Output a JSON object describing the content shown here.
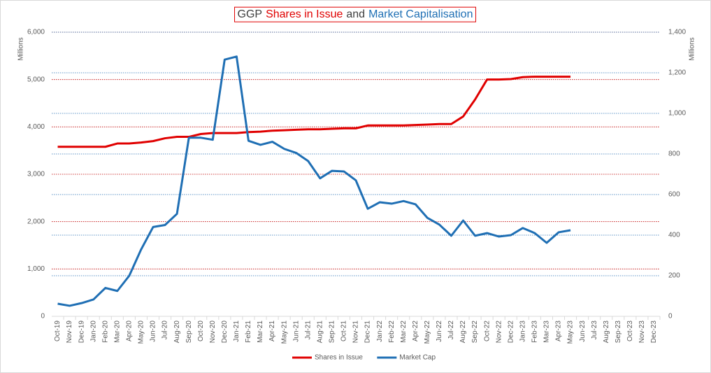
{
  "chart_data": {
    "type": "line",
    "title_parts": [
      {
        "text": "GGP",
        "color": "#404040"
      },
      {
        "text": "Shares in Issue",
        "color": "#e00000"
      },
      {
        "text": "and",
        "color": "#404040"
      },
      {
        "text": "Market Capitalisation",
        "color": "#1f6fb4"
      }
    ],
    "y_label": "Millions",
    "y2_label": "Millions",
    "categories": [
      "Oct-19",
      "Nov-19",
      "Dec-19",
      "Jan-20",
      "Feb-20",
      "Mar-20",
      "Apr-20",
      "May-20",
      "Jun-20",
      "Jul-20",
      "Aug-20",
      "Sep-20",
      "Oct-20",
      "Nov-20",
      "Dec-20",
      "Jan-21",
      "Feb-21",
      "Mar-21",
      "Apr-21",
      "May-21",
      "Jun-21",
      "Jul-21",
      "Aug-21",
      "Sep-21",
      "Oct-21",
      "Nov-21",
      "Dec-21",
      "Jan-22",
      "Feb-22",
      "Mar-22",
      "Apr-22",
      "May-22",
      "Jun-22",
      "Jul-22",
      "Aug-22",
      "Sep-22",
      "Oct-22",
      "Nov-22",
      "Dec-22",
      "Jan-23",
      "Feb-23",
      "Mar-23",
      "Apr-23",
      "May-23",
      "Jun-23",
      "Jul-23",
      "Aug-23",
      "Sep-23",
      "Oct-23",
      "Nov-23",
      "Dec-23"
    ],
    "series": [
      {
        "name": "Shares in Issue",
        "color": "#e00000",
        "axis": "y",
        "values": [
          3580,
          3580,
          3580,
          3580,
          3580,
          3650,
          3650,
          3670,
          3700,
          3760,
          3790,
          3790,
          3850,
          3870,
          3870,
          3870,
          3890,
          3900,
          3920,
          3930,
          3940,
          3950,
          3950,
          3960,
          3970,
          3970,
          4030,
          4030,
          4030,
          4030,
          4040,
          4050,
          4060,
          4060,
          4220,
          4580,
          5000,
          5000,
          5010,
          5050,
          5060,
          5060,
          5060,
          5060,
          null,
          null,
          null,
          null,
          null,
          null,
          null
        ]
      },
      {
        "name": "Market Cap",
        "color": "#1f6fb4",
        "axis": "y2",
        "values": [
          62,
          52,
          65,
          83,
          140,
          125,
          200,
          330,
          440,
          450,
          505,
          880,
          880,
          870,
          1265,
          1280,
          865,
          845,
          860,
          825,
          805,
          765,
          680,
          717,
          714,
          670,
          530,
          562,
          555,
          568,
          552,
          485,
          452,
          397,
          472,
          397,
          410,
          393,
          400,
          435,
          410,
          362,
          414,
          424,
          null,
          null,
          null,
          null,
          null,
          null,
          null
        ]
      }
    ],
    "ylim": [
      0,
      6000
    ],
    "yticks": [
      0,
      {
        "value": 1000,
        "label": "1,000"
      },
      {
        "value": 2000,
        "label": "2,000"
      },
      {
        "value": 3000,
        "label": "3,000"
      },
      {
        "value": 4000,
        "label": "4,000"
      },
      {
        "value": 5000,
        "label": "5,000"
      },
      {
        "value": 6000,
        "label": "6,000"
      }
    ],
    "y2lim": [
      0,
      1400
    ],
    "y2ticks": [
      0,
      200,
      400,
      600,
      800,
      {
        "value": 1000,
        "label": "1,000"
      },
      {
        "value": 1200,
        "label": "1,200"
      },
      {
        "value": 1400,
        "label": "1,400"
      }
    ],
    "grid": true,
    "grid_color": "#c00000",
    "grid2_color": "#2e75b6",
    "legend": "bottom"
  }
}
